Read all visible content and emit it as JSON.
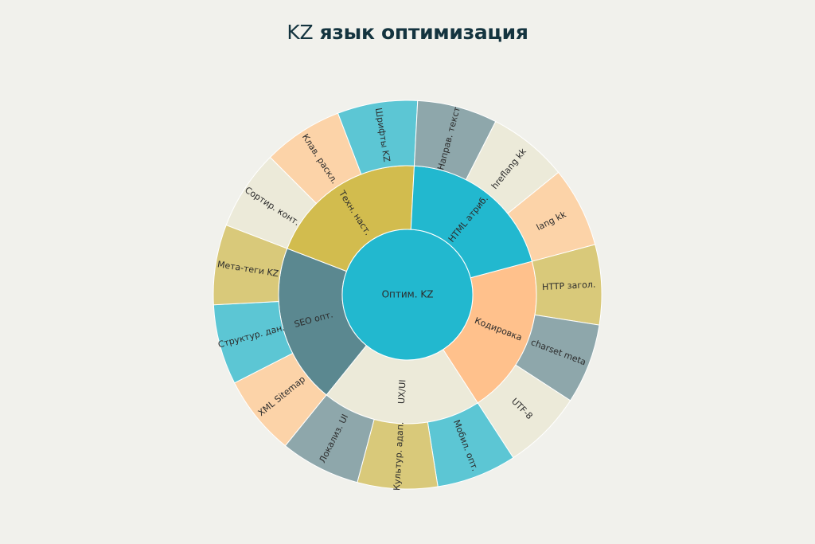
{
  "chart_data": {
    "type": "sunburst",
    "title_lead": "KZ",
    "title_rest": " язык оптимизация",
    "root": "Оптим. KZ",
    "colors": {
      "background": "#f1f1ec",
      "title": "#14343f",
      "root": "#22b8cf",
      "stroke": "#ffffff"
    },
    "groups": [
      {
        "name": "Кодировка",
        "color": "#ffc18c",
        "children": [
          {
            "name": "HTTP загол.",
            "value": 1,
            "color": "#d9c97a"
          },
          {
            "name": "charset meta",
            "value": 1,
            "color": "#8ea7ab"
          },
          {
            "name": "UTF-8",
            "value": 1,
            "color": "#ecead9"
          }
        ]
      },
      {
        "name": "UX/UI",
        "color": "#ecead9",
        "children": [
          {
            "name": "Мобил. опт.",
            "value": 1,
            "color": "#5cc6d4"
          },
          {
            "name": "Культур. адап.",
            "value": 1,
            "color": "#d9c97a"
          },
          {
            "name": "Локализ. UI",
            "value": 1,
            "color": "#8ea7ab"
          }
        ]
      },
      {
        "name": "SEO опт.",
        "color": "#5b8890",
        "children": [
          {
            "name": "XML Sitemap",
            "value": 1,
            "color": "#fcd3a8"
          },
          {
            "name": "Структур. дан.",
            "value": 1,
            "color": "#5cc6d4"
          },
          {
            "name": "Мета-теги KZ",
            "value": 1,
            "color": "#d9c97a"
          }
        ]
      },
      {
        "name": "Техн. наст.",
        "color": "#d2bc4e",
        "children": [
          {
            "name": "Сортир. конт.",
            "value": 1,
            "color": "#ecead9"
          },
          {
            "name": "Клав. раскл.",
            "value": 1,
            "color": "#fcd3a8"
          },
          {
            "name": "Шрифты KZ",
            "value": 1,
            "color": "#5cc6d4"
          }
        ]
      },
      {
        "name": "HTML атриб.",
        "color": "#22b8cf",
        "children": [
          {
            "name": "Направ. текст",
            "value": 1,
            "color": "#8ea7ab"
          },
          {
            "name": "hreflang kk",
            "value": 1,
            "color": "#ecead9"
          },
          {
            "name": "lang kk",
            "value": 1,
            "color": "#fcd3a8"
          }
        ]
      }
    ]
  }
}
